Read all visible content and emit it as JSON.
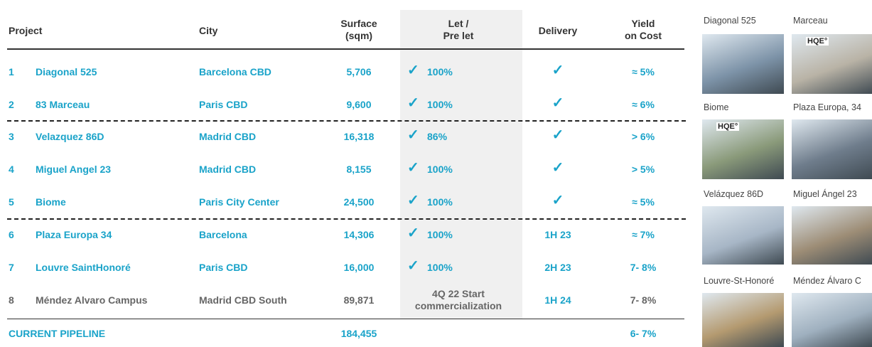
{
  "table": {
    "headers": {
      "project": "Project",
      "city": "City",
      "surface": "Surface\n(sqm)",
      "let": "Let /\nPre let",
      "delivery": "Delivery",
      "yield": "Yield\non Cost"
    },
    "rows": [
      {
        "num": "1",
        "project": "Diagonal 525",
        "city": "Barcelona CBD",
        "surface": "5,706",
        "let_mark": "✓",
        "let": "100%",
        "delivery": "✓",
        "yield": "≈ 5%"
      },
      {
        "num": "2",
        "project": "83 Marceau",
        "city": "Paris CBD",
        "surface": "9,600",
        "let_mark": "✓",
        "let": "100%",
        "delivery": "✓",
        "yield": "≈ 6%"
      },
      {
        "num": "3",
        "project": "Velazquez 86D",
        "city": "Madrid CBD",
        "surface": "16,318",
        "let_mark": "✓",
        "let": "86%",
        "delivery": "✓",
        "yield": "> 6%"
      },
      {
        "num": "4",
        "project": "Miguel Angel 23",
        "city": "Madrid CBD",
        "surface": "8,155",
        "let_mark": "✓",
        "let": "100%",
        "delivery": "✓",
        "yield": "> 5%"
      },
      {
        "num": "5",
        "project": "Biome",
        "city": "Paris City Center",
        "surface": "24,500",
        "let_mark": "✓",
        "let": "100%",
        "delivery": "✓",
        "yield": "≈ 5%"
      },
      {
        "num": "6",
        "project": "Plaza Europa 34",
        "city": "Barcelona",
        "surface": "14,306",
        "let_mark": "✓",
        "let": "100%",
        "delivery": "1H 23",
        "yield": "≈ 7%"
      },
      {
        "num": "7",
        "project": "Louvre SaintHonoré",
        "city": "Paris CBD",
        "surface": "16,000",
        "let_mark": "✓",
        "let": "100%",
        "delivery": "2H 23",
        "yield": "7- 8%"
      },
      {
        "num": "8",
        "project": "Méndez Alvaro Campus",
        "city": "Madrid CBD South",
        "surface": "89,871",
        "let": "4Q 22 Start\ncommercialization",
        "delivery": "1H 24",
        "yield": "7- 8%"
      }
    ],
    "total": {
      "label": "CURRENT PIPELINE",
      "surface": "184,455",
      "yield": "6- 7%"
    }
  },
  "gallery": [
    {
      "caption": "Diagonal 525"
    },
    {
      "caption": "Marceau",
      "badge": "HQE°"
    },
    {
      "caption": "Biome",
      "badge": "HQE°"
    },
    {
      "caption": "Plaza Europa, 34"
    },
    {
      "caption": "Velázquez 86D"
    },
    {
      "caption": "Miguel Ángel 23"
    },
    {
      "caption": "Louvre-St-Honoré"
    },
    {
      "caption": "Méndez Álvaro C"
    }
  ]
}
